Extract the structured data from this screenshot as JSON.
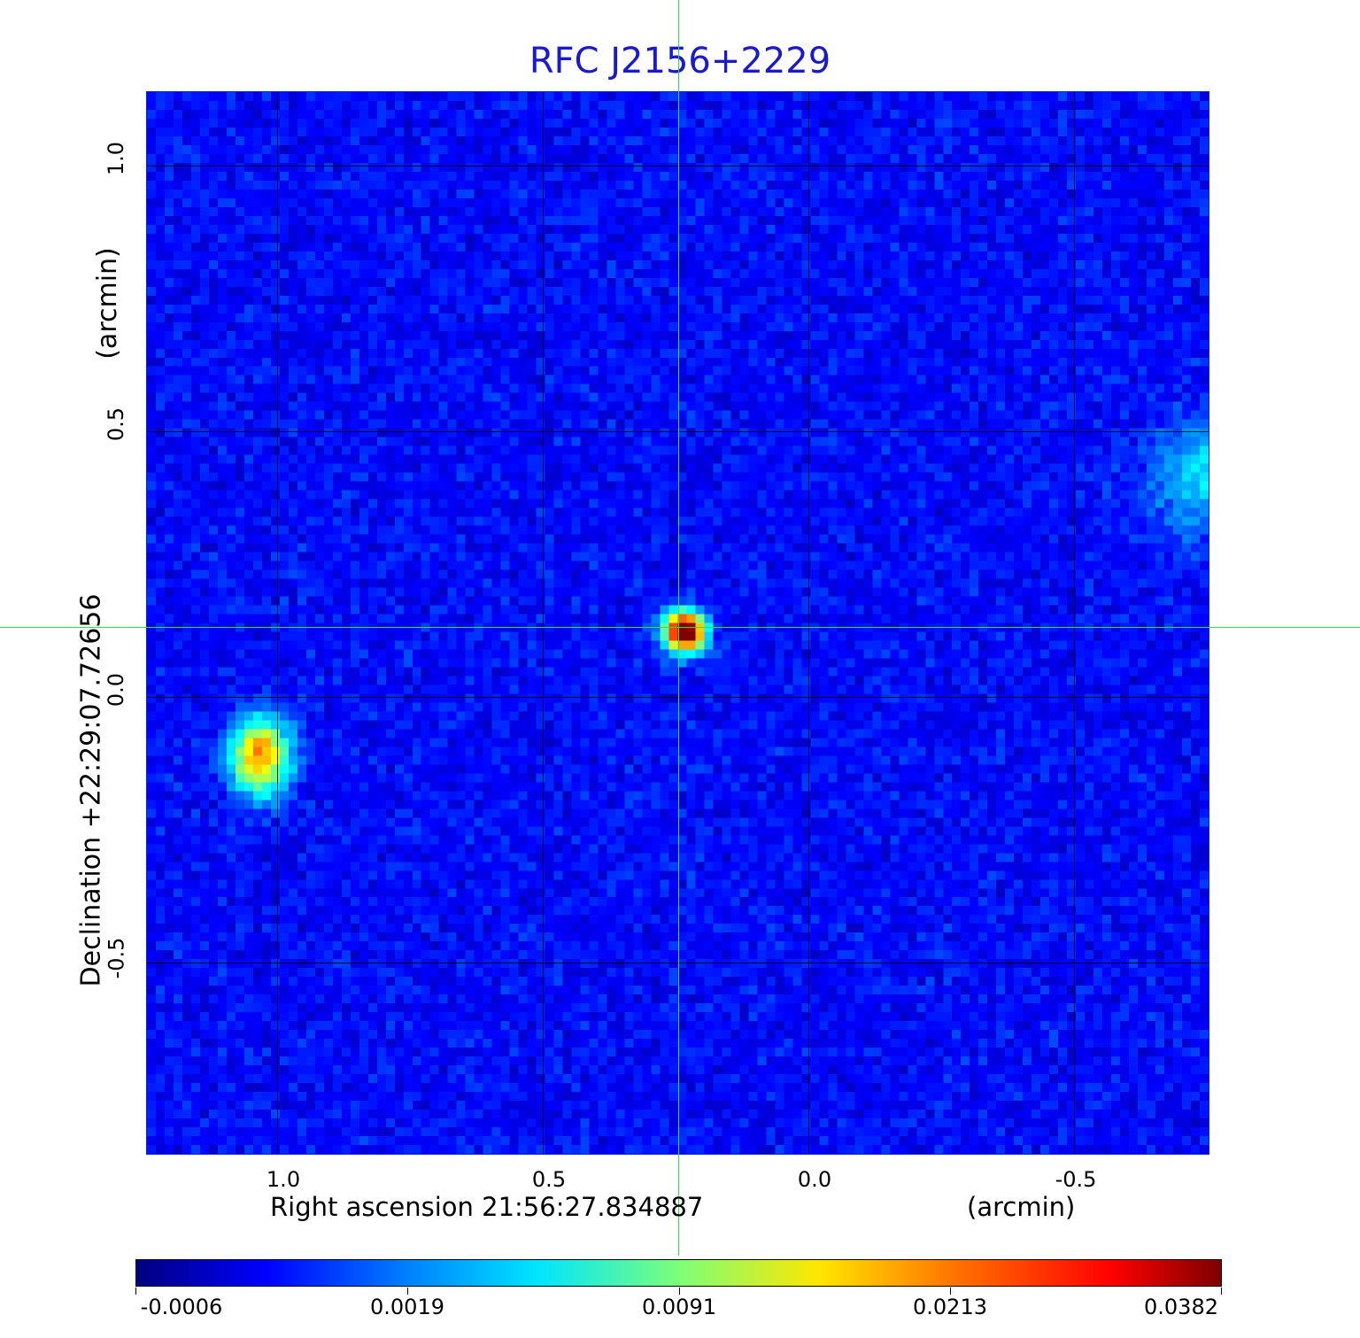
{
  "title": "RFC J2156+2229",
  "x_axis": {
    "label": "Right ascension  21:56:27.834887",
    "unit": "(arcmin)",
    "ticks": [
      "1.0",
      "0.5",
      "0.0",
      "-0.5"
    ]
  },
  "y_axis": {
    "label": "Declination  +22:29:07.72656",
    "unit": "(arcmin)",
    "ticks": [
      "1.0",
      "0.5",
      "0.0",
      "-0.5"
    ]
  },
  "colorbar": {
    "labels": [
      "-0.0006",
      "0.0019",
      "0.0091",
      "0.0213",
      "0.0382"
    ]
  },
  "colors": {
    "title": "#1a1acc",
    "crosshair": "#33dd44",
    "background_map": "#1d4cf2"
  }
}
